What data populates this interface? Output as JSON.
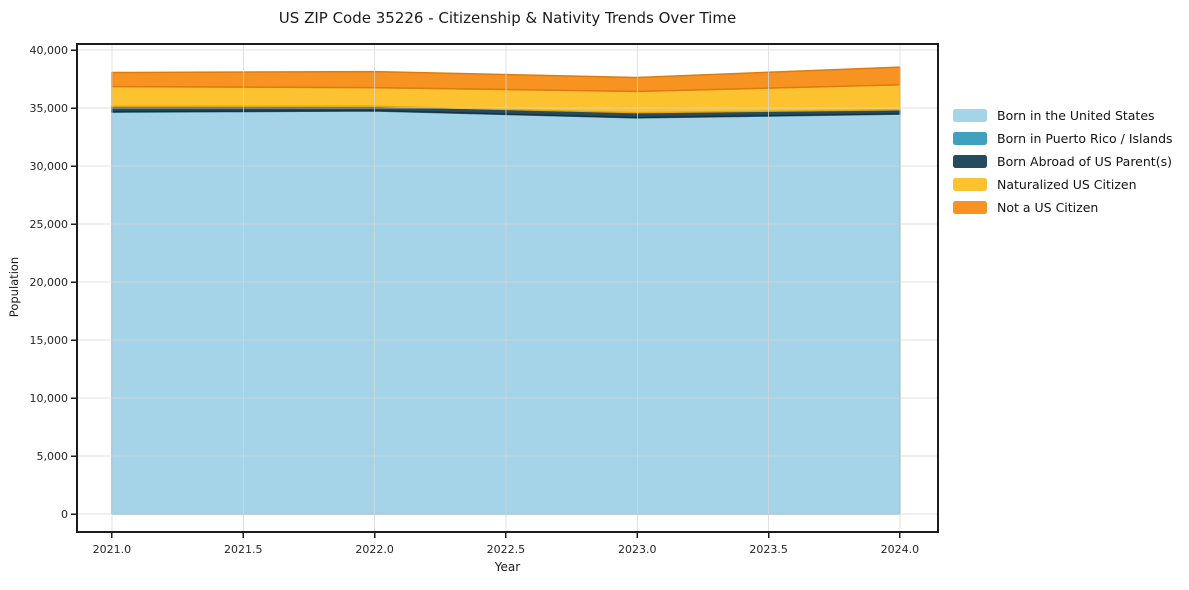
{
  "chart_data": {
    "type": "area",
    "stacked": true,
    "title": "US ZIP Code 35226 - Citizenship & Nativity Trends Over Time",
    "xlabel": "Year",
    "ylabel": "Population",
    "x": [
      2021,
      2022,
      2023,
      2024
    ],
    "series": [
      {
        "name": "Born in the United States",
        "color": "#a5d3e8",
        "edge": "#7fb5d1",
        "values": [
          34650,
          34750,
          34150,
          34480
        ]
      },
      {
        "name": "Born in Puerto Rico / Islands",
        "color": "#3fa0bf",
        "edge": "#31809a",
        "values": [
          30,
          30,
          30,
          30
        ]
      },
      {
        "name": "Born Abroad of US Parent(s)",
        "color": "#254b5e",
        "edge": "#16323f",
        "values": [
          480,
          380,
          430,
          340
        ]
      },
      {
        "name": "Naturalized US Citizen",
        "color": "#fcc22f",
        "edge": "#e2a713",
        "values": [
          1700,
          1600,
          1820,
          2150
        ]
      },
      {
        "name": "Not a US Citizen",
        "color": "#f79421",
        "edge": "#dd7b10",
        "values": [
          1200,
          1380,
          1200,
          1530
        ]
      }
    ],
    "xlim": [
      2020.867,
      2024.145
    ],
    "ylim": [
      -1550,
      40520
    ],
    "xticks": [
      2021.0,
      2021.5,
      2022.0,
      2022.5,
      2023.0,
      2023.5,
      2024.0
    ],
    "xtick_labels": [
      "2021.0",
      "2021.5",
      "2022.0",
      "2022.5",
      "2023.0",
      "2023.5",
      "2024.0"
    ],
    "yticks": [
      0,
      5000,
      10000,
      15000,
      20000,
      25000,
      30000,
      35000,
      40000
    ],
    "ytick_labels": [
      "0",
      "5,000",
      "10,000",
      "15,000",
      "20,000",
      "25,000",
      "30,000",
      "35,000",
      "40,000"
    ],
    "grid": true,
    "legend_position": "right"
  },
  "style_colors": {
    "spine": "#1c1c1c",
    "grid": "#d8d8d8",
    "tick_label": "#262626"
  }
}
